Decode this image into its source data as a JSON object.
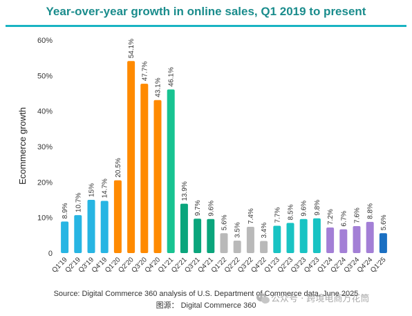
{
  "chart_data": {
    "type": "bar",
    "title": "Year-over-year growth in online sales, Q1 2019 to present",
    "ylabel": "Ecommerce growth",
    "xlabel": "",
    "ylim": [
      0,
      60
    ],
    "yticks": [
      "0",
      "10%",
      "20%",
      "30%",
      "40%",
      "50%",
      "60%"
    ],
    "grid": false,
    "legend": "none",
    "categories": [
      "Q1'19",
      "Q2'19",
      "Q3'19",
      "Q4'19",
      "Q1'20",
      "Q2'20",
      "Q3'20",
      "Q4'20",
      "Q1'21",
      "Q2'21",
      "Q3'21",
      "Q4'21",
      "Q1'22",
      "Q2'22",
      "Q3'22",
      "Q4'22",
      "Q1'23",
      "Q2'23",
      "Q3'23",
      "Q4'23",
      "Q1'24",
      "Q2'24",
      "Q3'24",
      "Q4'24",
      "Q1'25"
    ],
    "values": [
      8.9,
      10.7,
      15,
      14.7,
      20.5,
      54.1,
      47.7,
      43.1,
      46.1,
      13.9,
      9.7,
      9.6,
      5.6,
      3.5,
      7.4,
      3.4,
      7.7,
      8.5,
      9.6,
      9.8,
      7.2,
      6.7,
      7.6,
      8.8,
      5.6
    ],
    "value_labels": [
      "8.9%",
      "10.7%",
      "15%",
      "14.7%",
      "20.5%",
      "54.1%",
      "47.7%",
      "43.1%",
      "46.1%",
      "13.9%",
      "9.7%",
      "9.6%",
      "5.6%",
      "3.5%",
      "7.4%",
      "3.4%",
      "7.7%",
      "8.5%",
      "9.6%",
      "9.8%",
      "7.2%",
      "6.7%",
      "7.6%",
      "8.8%",
      "5.6%"
    ],
    "bar_colors": [
      "#27b5e3",
      "#27b5e3",
      "#27b5e3",
      "#27b5e3",
      "#ff8a00",
      "#ff8a00",
      "#ff8a00",
      "#ff8a00",
      "#18c391",
      "#0aa57c",
      "#0aa57c",
      "#0aa57c",
      "#b9b9b9",
      "#b9b9b9",
      "#b9b9b9",
      "#b9b9b9",
      "#18c3c3",
      "#18c3c3",
      "#18c3c3",
      "#18c3c3",
      "#a37fd6",
      "#a37fd6",
      "#a37fd6",
      "#a37fd6",
      "#1a6fc2"
    ]
  },
  "colors": {
    "title": "#1a8c8c",
    "title_rule": "#19b3c2"
  },
  "footer": {
    "source": "Source: Digital Commerce 360 analysis of U.S. Department of Commerce data, June 2025",
    "source_cn": "图源：  Digital Commerce 360"
  },
  "watermark": {
    "text": "公众号 · 跨境电商万花筒",
    "icon": "wechat-icon"
  }
}
